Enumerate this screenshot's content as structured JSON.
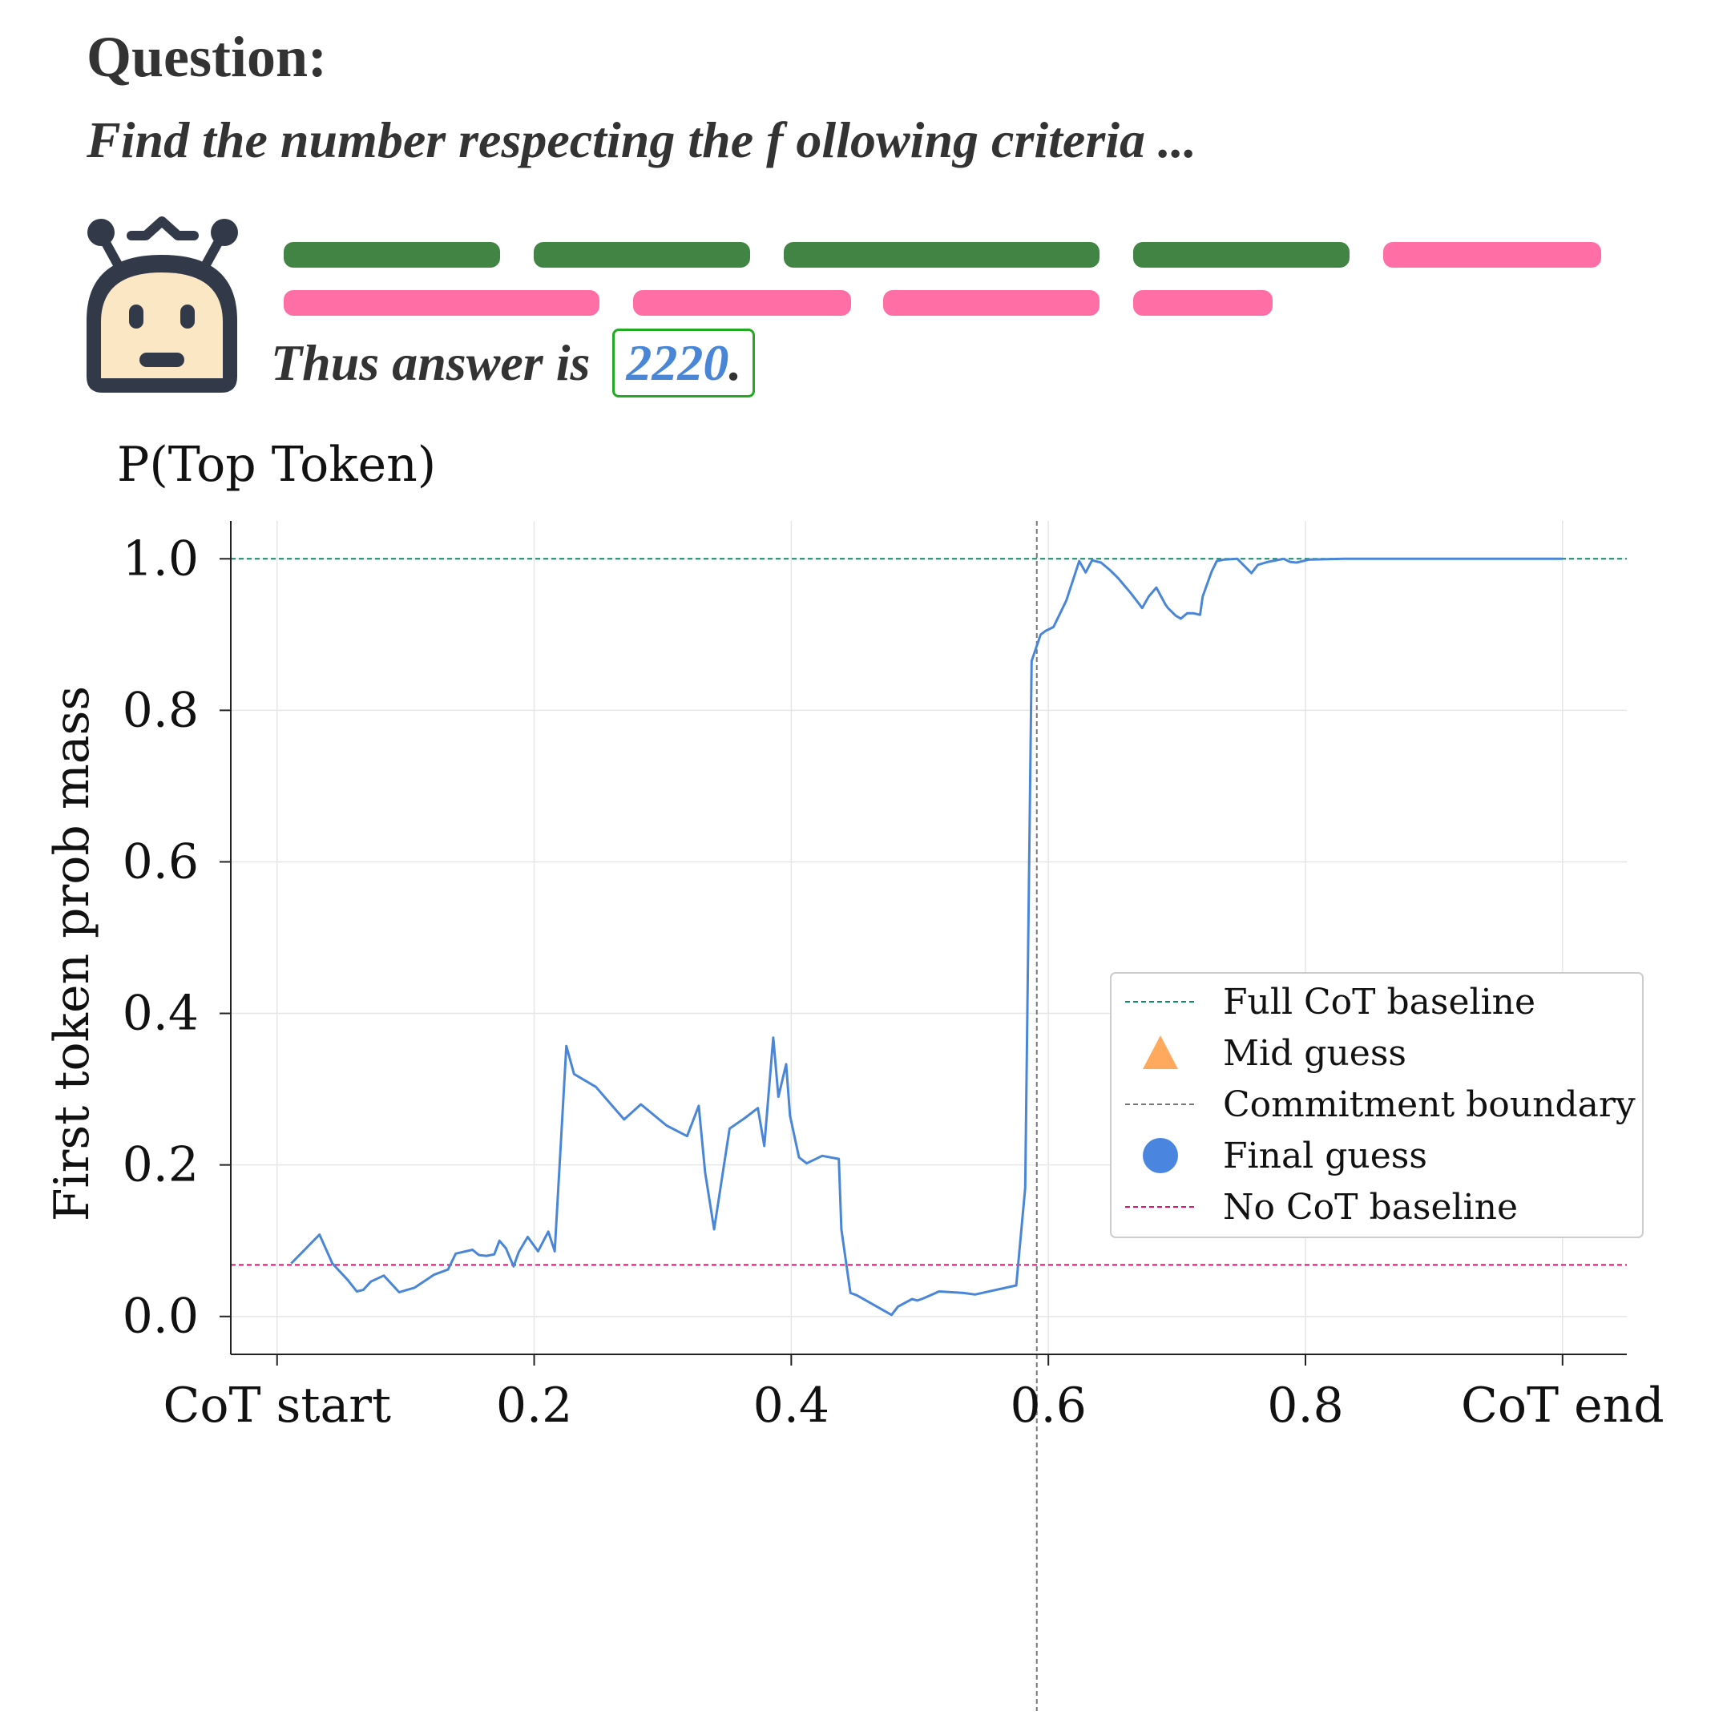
{
  "header": {
    "question_label": "Question:",
    "question_text": "Find the number respecting the f ollowing criteria ...",
    "answer_prefix": "Thus answer is",
    "answer_value": "2220",
    "answer_suffix": ".",
    "colors": {
      "correct_segment": "#428443",
      "incorrect_segment": "#ff6fa5",
      "answer_box": "#22aa22",
      "answer_text": "#4a86d8"
    },
    "robot_icon": "robot-icon"
  },
  "chart_data": {
    "type": "line",
    "title": "P(Top Token)",
    "xlabel": "",
    "ylabel": "First token prob mass",
    "xlim": [
      -0.036,
      1.05
    ],
    "ylim": [
      -0.05,
      1.05
    ],
    "xticks": [
      {
        "value": 0.0,
        "label": "CoT start"
      },
      {
        "value": 0.2,
        "label": "0.2"
      },
      {
        "value": 0.4,
        "label": "0.4"
      },
      {
        "value": 0.6,
        "label": "0.6"
      },
      {
        "value": 0.8,
        "label": "0.8"
      },
      {
        "value": 1.0,
        "label": "CoT end"
      }
    ],
    "yticks": [
      {
        "value": 0.0,
        "label": "0.0"
      },
      {
        "value": 0.2,
        "label": "0.2"
      },
      {
        "value": 0.4,
        "label": "0.4"
      },
      {
        "value": 0.6,
        "label": "0.6"
      },
      {
        "value": 0.8,
        "label": "0.8"
      },
      {
        "value": 1.0,
        "label": "1.0"
      }
    ],
    "grid": true,
    "legend_position": "center-right",
    "baselines": {
      "full_cot": {
        "name": "Full CoT baseline",
        "value": 1.0,
        "color": "#0b8a6a"
      },
      "no_cot": {
        "name": "No CoT baseline",
        "value": 0.068,
        "color": "#e0136e"
      }
    },
    "commitment_boundary": {
      "name": "Commitment boundary",
      "value": 0.591,
      "color": "#777777"
    },
    "markers": {
      "mid_guess": {
        "name": "Mid guess",
        "color": "#ffa95e"
      },
      "final_guess": {
        "name": "Final guess",
        "color": "#4a86e0"
      }
    },
    "series": [
      {
        "color": "#4a86d8",
        "x": [
          0.011,
          0.033,
          0.043,
          0.055,
          0.062,
          0.067,
          0.073,
          0.083,
          0.095,
          0.101,
          0.107,
          0.122,
          0.133,
          0.139,
          0.152,
          0.157,
          0.163,
          0.169,
          0.173,
          0.178,
          0.184,
          0.188,
          0.195,
          0.203,
          0.211,
          0.216,
          0.225,
          0.231,
          0.248,
          0.27,
          0.283,
          0.303,
          0.319,
          0.328,
          0.333,
          0.34,
          0.352,
          0.364,
          0.374,
          0.379,
          0.386,
          0.39,
          0.396,
          0.399,
          0.406,
          0.412,
          0.424,
          0.437,
          0.439,
          0.446,
          0.451,
          0.478,
          0.483,
          0.494,
          0.498,
          0.503,
          0.515,
          0.534,
          0.543,
          0.575,
          0.582,
          0.587,
          0.59,
          0.594,
          0.598,
          0.604,
          0.614,
          0.624,
          0.629,
          0.634,
          0.641,
          0.648,
          0.654,
          0.664,
          0.673,
          0.678,
          0.684,
          0.691,
          0.693,
          0.699,
          0.703,
          0.708,
          0.713,
          0.718,
          0.72,
          0.727,
          0.731,
          0.737,
          0.747,
          0.758,
          0.763,
          0.771,
          0.783,
          0.788,
          0.793,
          0.803,
          0.83,
          0.9,
          1.0
        ],
        "y": [
          0.07,
          0.108,
          0.07,
          0.048,
          0.033,
          0.035,
          0.046,
          0.054,
          0.032,
          0.035,
          0.038,
          0.055,
          0.062,
          0.083,
          0.088,
          0.081,
          0.08,
          0.082,
          0.1,
          0.09,
          0.066,
          0.085,
          0.105,
          0.086,
          0.112,
          0.086,
          0.357,
          0.32,
          0.303,
          0.26,
          0.28,
          0.252,
          0.238,
          0.278,
          0.19,
          0.115,
          0.248,
          0.262,
          0.275,
          0.225,
          0.368,
          0.29,
          0.333,
          0.265,
          0.21,
          0.202,
          0.212,
          0.208,
          0.115,
          0.031,
          0.028,
          0.002,
          0.013,
          0.023,
          0.021,
          0.024,
          0.033,
          0.031,
          0.029,
          0.041,
          0.17,
          0.865,
          0.88,
          0.9,
          0.905,
          0.91,
          0.945,
          0.997,
          0.982,
          0.998,
          0.995,
          0.985,
          0.975,
          0.955,
          0.935,
          0.95,
          0.962,
          0.94,
          0.935,
          0.925,
          0.921,
          0.928,
          0.928,
          0.926,
          0.95,
          0.983,
          0.997,
          0.999,
          1.0,
          0.981,
          0.992,
          0.996,
          1.0,
          0.996,
          0.995,
          0.999,
          1.0,
          1.0,
          1.0
        ]
      }
    ]
  }
}
